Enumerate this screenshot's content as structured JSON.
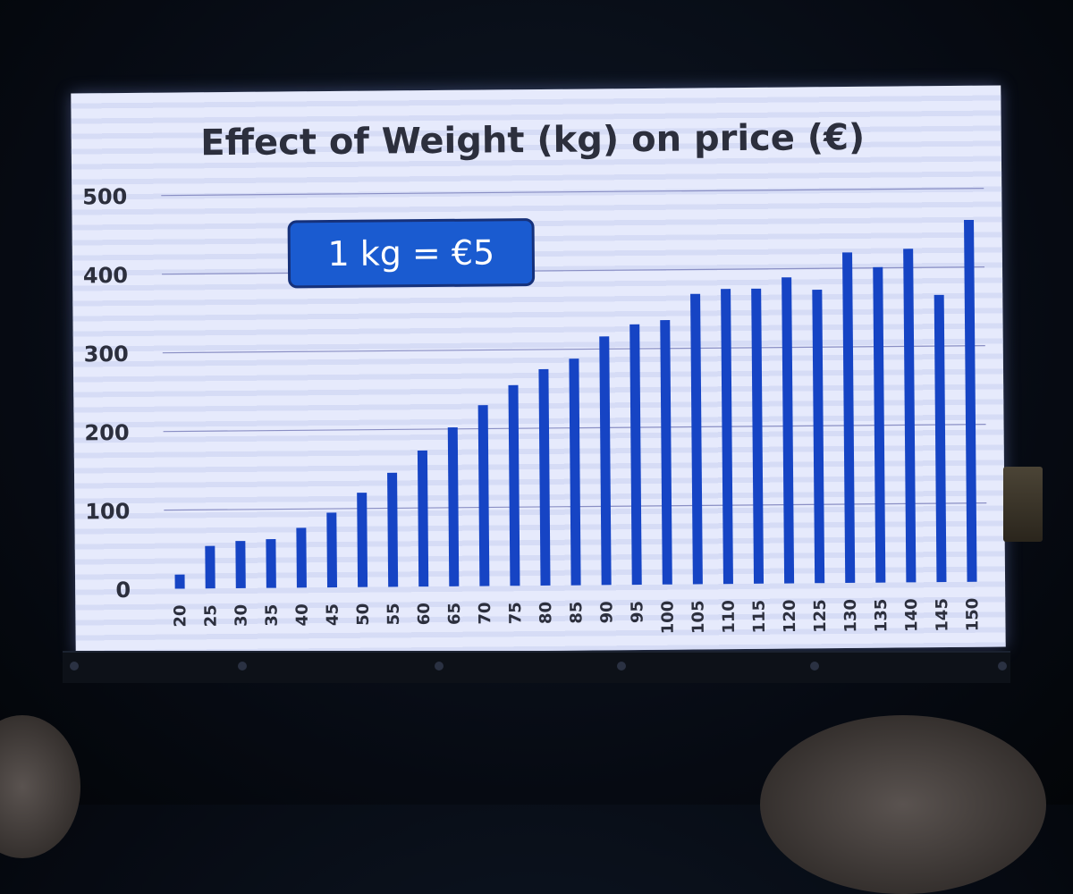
{
  "chart_data": {
    "type": "bar",
    "title": "Effect of Weight (kg) on price (€)",
    "xlabel": "",
    "ylabel": "",
    "ylim": [
      0,
      500
    ],
    "yticks": [
      0,
      100,
      200,
      300,
      400,
      500
    ],
    "grid": true,
    "categories": [
      "20",
      "25",
      "30",
      "35",
      "40",
      "45",
      "50",
      "55",
      "60",
      "65",
      "70",
      "75",
      "80",
      "85",
      "90",
      "95",
      "100",
      "105",
      "110",
      "115",
      "120",
      "125",
      "130",
      "135",
      "140",
      "145",
      "150"
    ],
    "values": [
      18,
      54,
      60,
      62,
      76,
      95,
      120,
      145,
      173,
      202,
      230,
      255,
      275,
      288,
      316,
      331,
      336,
      369,
      375,
      375,
      389,
      373,
      420,
      401,
      424,
      365,
      460
    ],
    "annotation": "1 kg = €5"
  },
  "colors": {
    "bar": "#1644c4",
    "background": "#e6eafc",
    "callout": "#1a5bd0",
    "text": "#2c2f3d"
  }
}
